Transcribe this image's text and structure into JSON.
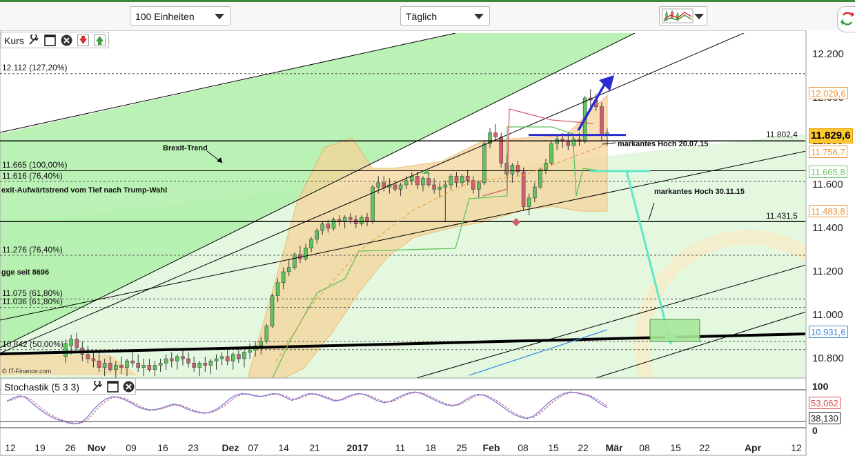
{
  "toolbar": {
    "units_select": "100 Einheiten",
    "interval_select": "Täglich",
    "chart_type_icon": "candlestick-chart-icon",
    "refresh_icon": "refresh-icon"
  },
  "main_panel": {
    "title": "Kurs",
    "icons": [
      "wrench-icon",
      "window-icon",
      "close-icon",
      "arrow-down-icon",
      "arrow-up-icon"
    ]
  },
  "stoch_panel": {
    "title": "Stochastik (5 3 3)",
    "icons": [
      "wrench-icon",
      "window-icon",
      "close-icon"
    ]
  },
  "y_axis": {
    "ticks": [
      "12.200",
      "12.000",
      "11.800",
      "11.600",
      "11.400",
      "11.200",
      "11.000",
      "10.800"
    ]
  },
  "stoch_axis": {
    "ticks": [
      "100",
      "0"
    ]
  },
  "price_boxes": [
    {
      "text": "12.029,6",
      "color": "#e8963a"
    },
    {
      "text": "11.829,6",
      "color": "#222222"
    },
    {
      "text": "11.756,7",
      "color": "#e8963a"
    },
    {
      "text": "11.665,8",
      "color": "#6cc46c"
    },
    {
      "text": "11.483,8",
      "color": "#e8963a"
    },
    {
      "text": "10.931,6",
      "color": "#3a8ad8"
    },
    {
      "text": "53,062",
      "color": "#d05050"
    },
    {
      "text": "38,130",
      "color": "#222222"
    }
  ],
  "level_labels": {
    "l1": "12.112 (127,20%)",
    "l2": "11.665 (100,00%)",
    "l3": "11.616 (76,40%)",
    "l4": "11.276 (76,40%)",
    "l5": "11.075 (61,80%)",
    "l6": "11.036 (61,80%)",
    "l7": "10.842 (50,00%)",
    "r1": "11.802,4",
    "r2": "11.431,5"
  },
  "annotations": {
    "brexit": "Brexit-Trend",
    "trump": "exit-Aufwärtstrend vom Tief nach Trump-Wahl",
    "hoch1": "markantes Hoch 20.07.15",
    "hoch2": "markantes Hoch 30.11.15",
    "gge": "gge seit 8696",
    "copyright": "© IT-Finance.com"
  },
  "x_axis": {
    "labels": [
      {
        "t": "12",
        "b": false
      },
      {
        "t": "19",
        "b": false
      },
      {
        "t": "26",
        "b": false
      },
      {
        "t": "Nov",
        "b": true
      },
      {
        "t": "09",
        "b": false
      },
      {
        "t": "16",
        "b": false
      },
      {
        "t": "23",
        "b": false
      },
      {
        "t": "Dez",
        "b": true
      },
      {
        "t": "07",
        "b": false
      },
      {
        "t": "14",
        "b": false
      },
      {
        "t": "21",
        "b": false
      },
      {
        "t": "2017",
        "b": true
      },
      {
        "t": "11",
        "b": false
      },
      {
        "t": "18",
        "b": false
      },
      {
        "t": "25",
        "b": false
      },
      {
        "t": "Feb",
        "b": true
      },
      {
        "t": "08",
        "b": false
      },
      {
        "t": "15",
        "b": false
      },
      {
        "t": "22",
        "b": false
      },
      {
        "t": "Mär",
        "b": true
      },
      {
        "t": "08",
        "b": false
      },
      {
        "t": "15",
        "b": false
      },
      {
        "t": "22",
        "b": false
      },
      {
        "t": "Apr",
        "b": true
      },
      {
        "t": "12",
        "b": false
      }
    ]
  },
  "chart_data": {
    "type": "candlestick",
    "title": "",
    "y_range": [
      10700,
      12300
    ],
    "stochastic_range": [
      0,
      100
    ],
    "colors": {
      "up": "#5cc45c",
      "down": "#d06070",
      "trend": "#000000",
      "target": "#2a2ad0",
      "projection": "#5ee8c8"
    },
    "candles": [
      [
        10810,
        10890,
        10780,
        10870
      ],
      [
        10860,
        10910,
        10820,
        10890
      ],
      [
        10890,
        10920,
        10840,
        10850
      ],
      [
        10850,
        10880,
        10790,
        10820
      ],
      [
        10820,
        10860,
        10780,
        10800
      ],
      [
        10800,
        10840,
        10760,
        10790
      ],
      [
        10790,
        10830,
        10740,
        10760
      ],
      [
        10760,
        10800,
        10720,
        10780
      ],
      [
        10780,
        10810,
        10740,
        10750
      ],
      [
        10750,
        10790,
        10710,
        10770
      ],
      [
        10770,
        10810,
        10730,
        10760
      ],
      [
        10760,
        10800,
        10720,
        10790
      ],
      [
        10790,
        10830,
        10760,
        10780
      ],
      [
        10780,
        10820,
        10740,
        10760
      ],
      [
        10760,
        10800,
        10720,
        10770
      ],
      [
        10770,
        10800,
        10740,
        10750
      ],
      [
        10750,
        10790,
        10720,
        10770
      ],
      [
        10770,
        10800,
        10740,
        10780
      ],
      [
        10780,
        10820,
        10750,
        10800
      ],
      [
        10800,
        10830,
        10760,
        10790
      ],
      [
        10790,
        10820,
        10750,
        10810
      ],
      [
        10810,
        10840,
        10770,
        10800
      ],
      [
        10800,
        10830,
        10760,
        10780
      ],
      [
        10780,
        10810,
        10740,
        10760
      ],
      [
        10760,
        10790,
        10720,
        10780
      ],
      [
        10780,
        10810,
        10740,
        10770
      ],
      [
        10770,
        10800,
        10730,
        10790
      ],
      [
        10790,
        10820,
        10750,
        10800
      ],
      [
        10800,
        10830,
        10770,
        10810
      ],
      [
        10810,
        10840,
        10770,
        10790
      ],
      [
        10790,
        10830,
        10750,
        10820
      ],
      [
        10820,
        10850,
        10780,
        10800
      ],
      [
        10800,
        10840,
        10760,
        10830
      ],
      [
        10830,
        10870,
        10800,
        10840
      ],
      [
        10840,
        10880,
        10810,
        10860
      ],
      [
        10860,
        10900,
        10820,
        10880
      ],
      [
        10880,
        10960,
        10870,
        10950
      ],
      [
        10950,
        11100,
        10940,
        11090
      ],
      [
        11090,
        11170,
        11060,
        11150
      ],
      [
        11150,
        11220,
        11120,
        11200
      ],
      [
        11200,
        11260,
        11180,
        11220
      ],
      [
        11220,
        11290,
        11210,
        11280
      ],
      [
        11280,
        11320,
        11240,
        11260
      ],
      [
        11260,
        11330,
        11250,
        11310
      ],
      [
        11310,
        11360,
        11290,
        11350
      ],
      [
        11350,
        11400,
        11330,
        11390
      ],
      [
        11390,
        11430,
        11370,
        11420
      ],
      [
        11420,
        11440,
        11380,
        11400
      ],
      [
        11400,
        11450,
        11390,
        11440
      ],
      [
        11440,
        11460,
        11410,
        11430
      ],
      [
        11430,
        11460,
        11400,
        11450
      ],
      [
        11450,
        11470,
        11420,
        11440
      ],
      [
        11440,
        11460,
        11400,
        11420
      ],
      [
        11420,
        11460,
        11410,
        11450
      ],
      [
        11450,
        11470,
        11410,
        11430
      ],
      [
        11430,
        11600,
        11420,
        11590
      ],
      [
        11590,
        11640,
        11560,
        11610
      ],
      [
        11610,
        11640,
        11570,
        11590
      ],
      [
        11590,
        11630,
        11560,
        11600
      ],
      [
        11600,
        11620,
        11570,
        11580
      ],
      [
        11580,
        11610,
        11550,
        11600
      ],
      [
        11600,
        11640,
        11580,
        11620
      ],
      [
        11620,
        11660,
        11600,
        11640
      ],
      [
        11640,
        11660,
        11580,
        11600
      ],
      [
        11600,
        11640,
        11570,
        11630
      ],
      [
        11630,
        11660,
        11590,
        11600
      ],
      [
        11600,
        11630,
        11560,
        11580
      ],
      [
        11580,
        11610,
        11540,
        11590
      ],
      [
        11590,
        11620,
        11430,
        11600
      ],
      [
        11600,
        11650,
        11580,
        11640
      ],
      [
        11640,
        11660,
        11590,
        11610
      ],
      [
        11610,
        11650,
        11590,
        11640
      ],
      [
        11640,
        11670,
        11600,
        11620
      ],
      [
        11620,
        11640,
        11560,
        11580
      ],
      [
        11580,
        11620,
        11540,
        11610
      ],
      [
        11610,
        11800,
        11600,
        11790
      ],
      [
        11790,
        11860,
        11770,
        11840
      ],
      [
        11840,
        11880,
        11800,
        11820
      ],
      [
        11820,
        11840,
        11680,
        11700
      ],
      [
        11700,
        11740,
        11640,
        11650
      ],
      [
        11650,
        11700,
        11610,
        11690
      ],
      [
        11690,
        11710,
        11640,
        11660
      ],
      [
        11660,
        11680,
        11480,
        11500
      ],
      [
        11500,
        11560,
        11460,
        11540
      ],
      [
        11540,
        11610,
        11520,
        11590
      ],
      [
        11590,
        11680,
        11580,
        11670
      ],
      [
        11670,
        11720,
        11650,
        11700
      ],
      [
        11700,
        11800,
        11690,
        11790
      ],
      [
        11790,
        11830,
        11760,
        11810
      ],
      [
        11810,
        11840,
        11770,
        11800
      ],
      [
        11800,
        11840,
        11760,
        11780
      ],
      [
        11780,
        11820,
        11740,
        11810
      ],
      [
        11810,
        11840,
        11780,
        11800
      ],
      [
        11800,
        12010,
        11790,
        12000
      ],
      [
        12000,
        12040,
        11960,
        11990
      ],
      [
        11990,
        12020,
        11940,
        11960
      ],
      [
        11960,
        11980,
        11800,
        11830
      ],
      [
        11830,
        11860,
        11780,
        11840
      ]
    ],
    "stochastic": [
      70,
      78,
      84,
      80,
      66,
      52,
      40,
      30,
      22,
      18,
      12,
      10,
      14,
      28,
      48,
      64,
      76,
      82,
      80,
      74,
      66,
      56,
      50,
      46,
      48,
      52,
      58,
      62,
      58,
      50,
      44,
      40,
      38,
      42,
      50,
      62,
      76,
      86,
      90,
      88,
      84,
      82,
      86,
      90,
      88,
      80,
      72,
      78,
      86,
      90,
      88,
      82,
      76,
      70,
      74,
      82,
      88,
      90,
      86,
      78,
      70,
      66,
      70,
      78,
      86,
      92,
      94,
      90,
      82,
      74,
      66,
      60,
      58,
      62,
      72,
      82,
      88,
      86,
      78,
      68,
      56,
      44,
      34,
      28,
      24,
      30,
      42,
      58,
      72,
      82,
      90,
      94,
      92,
      88,
      84,
      74,
      62,
      53
    ],
    "levels": [
      {
        "name": "127,20%",
        "value": 12112
      },
      {
        "name": "100,00%",
        "value": 11665
      },
      {
        "name": "76,40%",
        "value": 11616
      },
      {
        "name": "76,40%",
        "value": 11276
      },
      {
        "name": "61,80%",
        "value": 11075
      },
      {
        "name": "61,80%",
        "value": 11036
      },
      {
        "name": "50,00%",
        "value": 10842
      }
    ],
    "horizontal_lines": [
      11802.4,
      11431.5
    ],
    "last_values": {
      "close": 11829.6,
      "bb_upper": 12029.6,
      "bb_mid": 11756.7,
      "kijun": 11665.8,
      "bb_lower": 11483.8,
      "ma": 10931.6,
      "stoch_k": 53.062,
      "stoch_d": 38.13
    }
  }
}
